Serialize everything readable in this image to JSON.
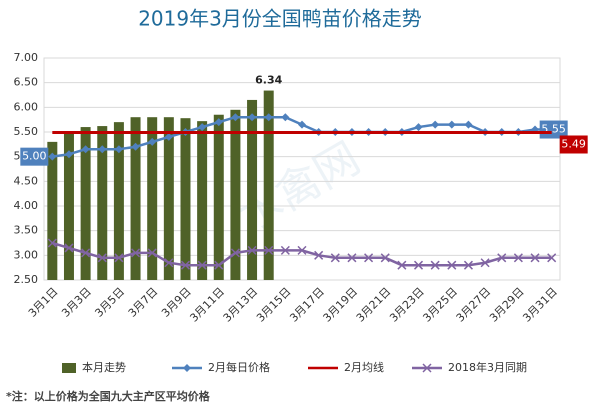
{
  "chart_data": {
    "type": "combo",
    "title": "2019年3月份全国鸭苗价格走势",
    "watermark": "水禽网",
    "footnote": "*注：以上价格为全国九大主产区平均价格",
    "categories": [
      "3月1日",
      null,
      "3月3日",
      null,
      "3月5日",
      null,
      "3月7日",
      null,
      "3月9日",
      null,
      "3月11日",
      null,
      "3月13日",
      null,
      "3月15日",
      null,
      "3月17日",
      null,
      "3月19日",
      null,
      "3月21日",
      null,
      "3月23日",
      null,
      "3月25日",
      null,
      "3月27日",
      null,
      "3月29日",
      null,
      "3月31日"
    ],
    "ylim": [
      2.5,
      7.0
    ],
    "yticks": [
      {
        "value": 2.5,
        "label": "2.50"
      },
      {
        "value": 3.0,
        "label": "3.00"
      },
      {
        "value": 3.5,
        "label": "3.50"
      },
      {
        "value": 4.0,
        "label": "4.00"
      },
      {
        "value": 4.5,
        "label": "4.50"
      },
      {
        "value": 5.0,
        "label": "5.00"
      },
      {
        "value": 5.5,
        "label": "5.50"
      },
      {
        "value": 6.0,
        "label": "6.00"
      },
      {
        "value": 6.5,
        "label": "6.50"
      },
      {
        "value": 7.0,
        "label": "7.00"
      }
    ],
    "grid": true,
    "legend": "bottom",
    "series": [
      {
        "name": "本月走势",
        "type": "bar",
        "color": "#4f6228",
        "values": [
          5.3,
          5.5,
          5.6,
          5.62,
          5.7,
          5.8,
          5.8,
          5.8,
          5.78,
          5.72,
          5.85,
          5.95,
          6.15,
          6.34,
          null,
          null,
          null,
          null,
          null,
          null,
          null,
          null,
          null,
          null,
          null,
          null,
          null,
          null,
          null,
          null,
          null
        ],
        "value_labels": [
          null,
          null,
          null,
          null,
          null,
          null,
          null,
          null,
          null,
          null,
          null,
          null,
          null,
          "6.34",
          null,
          null,
          null,
          null,
          null,
          null,
          null,
          null,
          null,
          null,
          null,
          null,
          null,
          null,
          null,
          null,
          null
        ]
      },
      {
        "name": "2月每日价格",
        "type": "line",
        "marker": "diamond",
        "color": "#4f81bd",
        "values": [
          5.0,
          5.05,
          5.15,
          5.15,
          5.15,
          5.2,
          5.3,
          5.4,
          5.5,
          5.6,
          5.7,
          5.8,
          5.8,
          5.8,
          5.8,
          5.65,
          5.5,
          5.5,
          5.5,
          5.5,
          5.5,
          5.5,
          5.6,
          5.65,
          5.65,
          5.65,
          5.5,
          5.5,
          5.5,
          5.55,
          5.55
        ],
        "value_labels": [
          "5.00",
          null,
          null,
          null,
          null,
          null,
          null,
          null,
          null,
          null,
          null,
          null,
          null,
          null,
          null,
          null,
          null,
          null,
          null,
          null,
          null,
          null,
          null,
          null,
          null,
          null,
          null,
          null,
          null,
          null,
          "5.55"
        ]
      },
      {
        "name": "2月均线",
        "type": "line",
        "marker": "none",
        "color": "#c00000",
        "values": [
          5.49,
          5.49,
          5.49,
          5.49,
          5.49,
          5.49,
          5.49,
          5.49,
          5.49,
          5.49,
          5.49,
          5.49,
          5.49,
          5.49,
          5.49,
          5.49,
          5.49,
          5.49,
          5.49,
          5.49,
          5.49,
          5.49,
          5.49,
          5.49,
          5.49,
          5.49,
          5.49,
          5.49,
          5.49,
          5.49,
          5.49
        ],
        "value_labels": [
          null,
          null,
          null,
          null,
          null,
          null,
          null,
          null,
          null,
          null,
          null,
          null,
          null,
          null,
          null,
          null,
          null,
          null,
          null,
          null,
          null,
          null,
          null,
          null,
          null,
          null,
          null,
          null,
          null,
          null,
          "5.49"
        ]
      },
      {
        "name": "2018年3月同期",
        "type": "line",
        "marker": "cross",
        "color": "#8064a2",
        "values": [
          3.25,
          3.15,
          3.05,
          2.95,
          2.95,
          3.05,
          3.05,
          2.85,
          2.8,
          2.8,
          2.8,
          3.05,
          3.1,
          3.1,
          3.1,
          3.1,
          3.0,
          2.95,
          2.95,
          2.95,
          2.95,
          2.8,
          2.8,
          2.8,
          2.8,
          2.8,
          2.85,
          2.95,
          2.95,
          2.95,
          2.95
        ]
      }
    ]
  }
}
